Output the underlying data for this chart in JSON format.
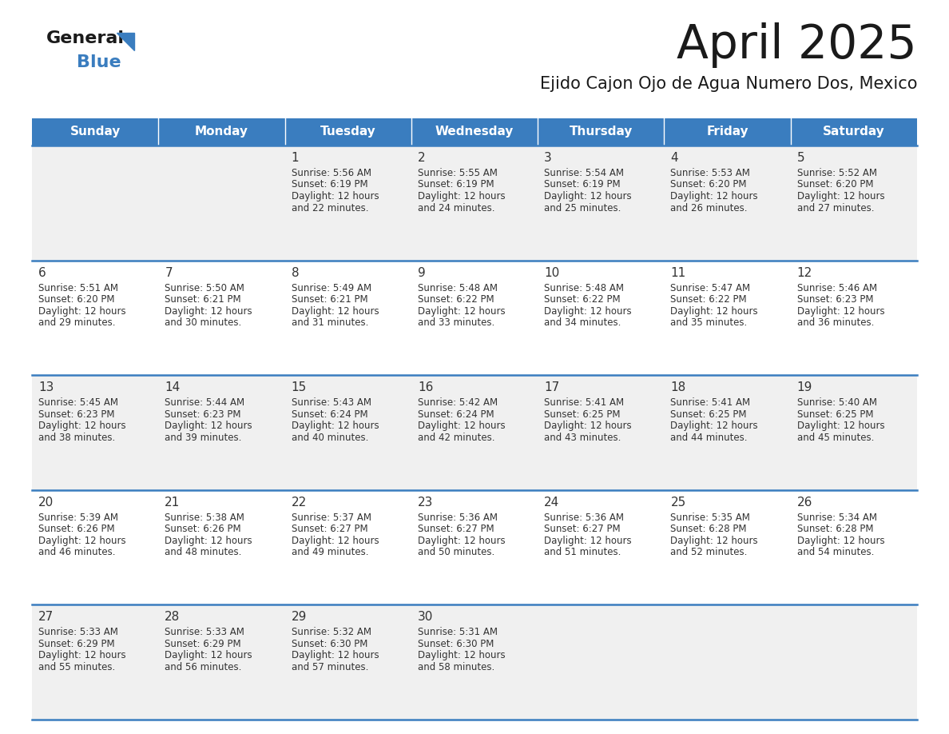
{
  "title": "April 2025",
  "subtitle": "Ejido Cajon Ojo de Agua Numero Dos, Mexico",
  "days_of_week": [
    "Sunday",
    "Monday",
    "Tuesday",
    "Wednesday",
    "Thursday",
    "Friday",
    "Saturday"
  ],
  "header_bg_color": "#3a7dbf",
  "header_text_color": "#ffffff",
  "cell_bg_color_even": "#f0f0f0",
  "cell_bg_color_odd": "#ffffff",
  "cell_border_color": "#3a7dbf",
  "title_color": "#1a1a1a",
  "subtitle_color": "#1a1a1a",
  "day_number_color": "#333333",
  "cell_text_color": "#333333",
  "calendar_data": [
    [
      {
        "day": null,
        "sunrise": null,
        "sunset": null,
        "daylight_min": null
      },
      {
        "day": null,
        "sunrise": null,
        "sunset": null,
        "daylight_min": null
      },
      {
        "day": 1,
        "sunrise": "5:56 AM",
        "sunset": "6:19 PM",
        "daylight_min": "22"
      },
      {
        "day": 2,
        "sunrise": "5:55 AM",
        "sunset": "6:19 PM",
        "daylight_min": "24"
      },
      {
        "day": 3,
        "sunrise": "5:54 AM",
        "sunset": "6:19 PM",
        "daylight_min": "25"
      },
      {
        "day": 4,
        "sunrise": "5:53 AM",
        "sunset": "6:20 PM",
        "daylight_min": "26"
      },
      {
        "day": 5,
        "sunrise": "5:52 AM",
        "sunset": "6:20 PM",
        "daylight_min": "27"
      }
    ],
    [
      {
        "day": 6,
        "sunrise": "5:51 AM",
        "sunset": "6:20 PM",
        "daylight_min": "29"
      },
      {
        "day": 7,
        "sunrise": "5:50 AM",
        "sunset": "6:21 PM",
        "daylight_min": "30"
      },
      {
        "day": 8,
        "sunrise": "5:49 AM",
        "sunset": "6:21 PM",
        "daylight_min": "31"
      },
      {
        "day": 9,
        "sunrise": "5:48 AM",
        "sunset": "6:22 PM",
        "daylight_min": "33"
      },
      {
        "day": 10,
        "sunrise": "5:48 AM",
        "sunset": "6:22 PM",
        "daylight_min": "34"
      },
      {
        "day": 11,
        "sunrise": "5:47 AM",
        "sunset": "6:22 PM",
        "daylight_min": "35"
      },
      {
        "day": 12,
        "sunrise": "5:46 AM",
        "sunset": "6:23 PM",
        "daylight_min": "36"
      }
    ],
    [
      {
        "day": 13,
        "sunrise": "5:45 AM",
        "sunset": "6:23 PM",
        "daylight_min": "38"
      },
      {
        "day": 14,
        "sunrise": "5:44 AM",
        "sunset": "6:23 PM",
        "daylight_min": "39"
      },
      {
        "day": 15,
        "sunrise": "5:43 AM",
        "sunset": "6:24 PM",
        "daylight_min": "40"
      },
      {
        "day": 16,
        "sunrise": "5:42 AM",
        "sunset": "6:24 PM",
        "daylight_min": "42"
      },
      {
        "day": 17,
        "sunrise": "5:41 AM",
        "sunset": "6:25 PM",
        "daylight_min": "43"
      },
      {
        "day": 18,
        "sunrise": "5:41 AM",
        "sunset": "6:25 PM",
        "daylight_min": "44"
      },
      {
        "day": 19,
        "sunrise": "5:40 AM",
        "sunset": "6:25 PM",
        "daylight_min": "45"
      }
    ],
    [
      {
        "day": 20,
        "sunrise": "5:39 AM",
        "sunset": "6:26 PM",
        "daylight_min": "46"
      },
      {
        "day": 21,
        "sunrise": "5:38 AM",
        "sunset": "6:26 PM",
        "daylight_min": "48"
      },
      {
        "day": 22,
        "sunrise": "5:37 AM",
        "sunset": "6:27 PM",
        "daylight_min": "49"
      },
      {
        "day": 23,
        "sunrise": "5:36 AM",
        "sunset": "6:27 PM",
        "daylight_min": "50"
      },
      {
        "day": 24,
        "sunrise": "5:36 AM",
        "sunset": "6:27 PM",
        "daylight_min": "51"
      },
      {
        "day": 25,
        "sunrise": "5:35 AM",
        "sunset": "6:28 PM",
        "daylight_min": "52"
      },
      {
        "day": 26,
        "sunrise": "5:34 AM",
        "sunset": "6:28 PM",
        "daylight_min": "54"
      }
    ],
    [
      {
        "day": 27,
        "sunrise": "5:33 AM",
        "sunset": "6:29 PM",
        "daylight_min": "55"
      },
      {
        "day": 28,
        "sunrise": "5:33 AM",
        "sunset": "6:29 PM",
        "daylight_min": "56"
      },
      {
        "day": 29,
        "sunrise": "5:32 AM",
        "sunset": "6:30 PM",
        "daylight_min": "57"
      },
      {
        "day": 30,
        "sunrise": "5:31 AM",
        "sunset": "6:30 PM",
        "daylight_min": "58"
      },
      {
        "day": null,
        "sunrise": null,
        "sunset": null,
        "daylight_min": null
      },
      {
        "day": null,
        "sunrise": null,
        "sunset": null,
        "daylight_min": null
      },
      {
        "day": null,
        "sunrise": null,
        "sunset": null,
        "daylight_min": null
      }
    ]
  ]
}
